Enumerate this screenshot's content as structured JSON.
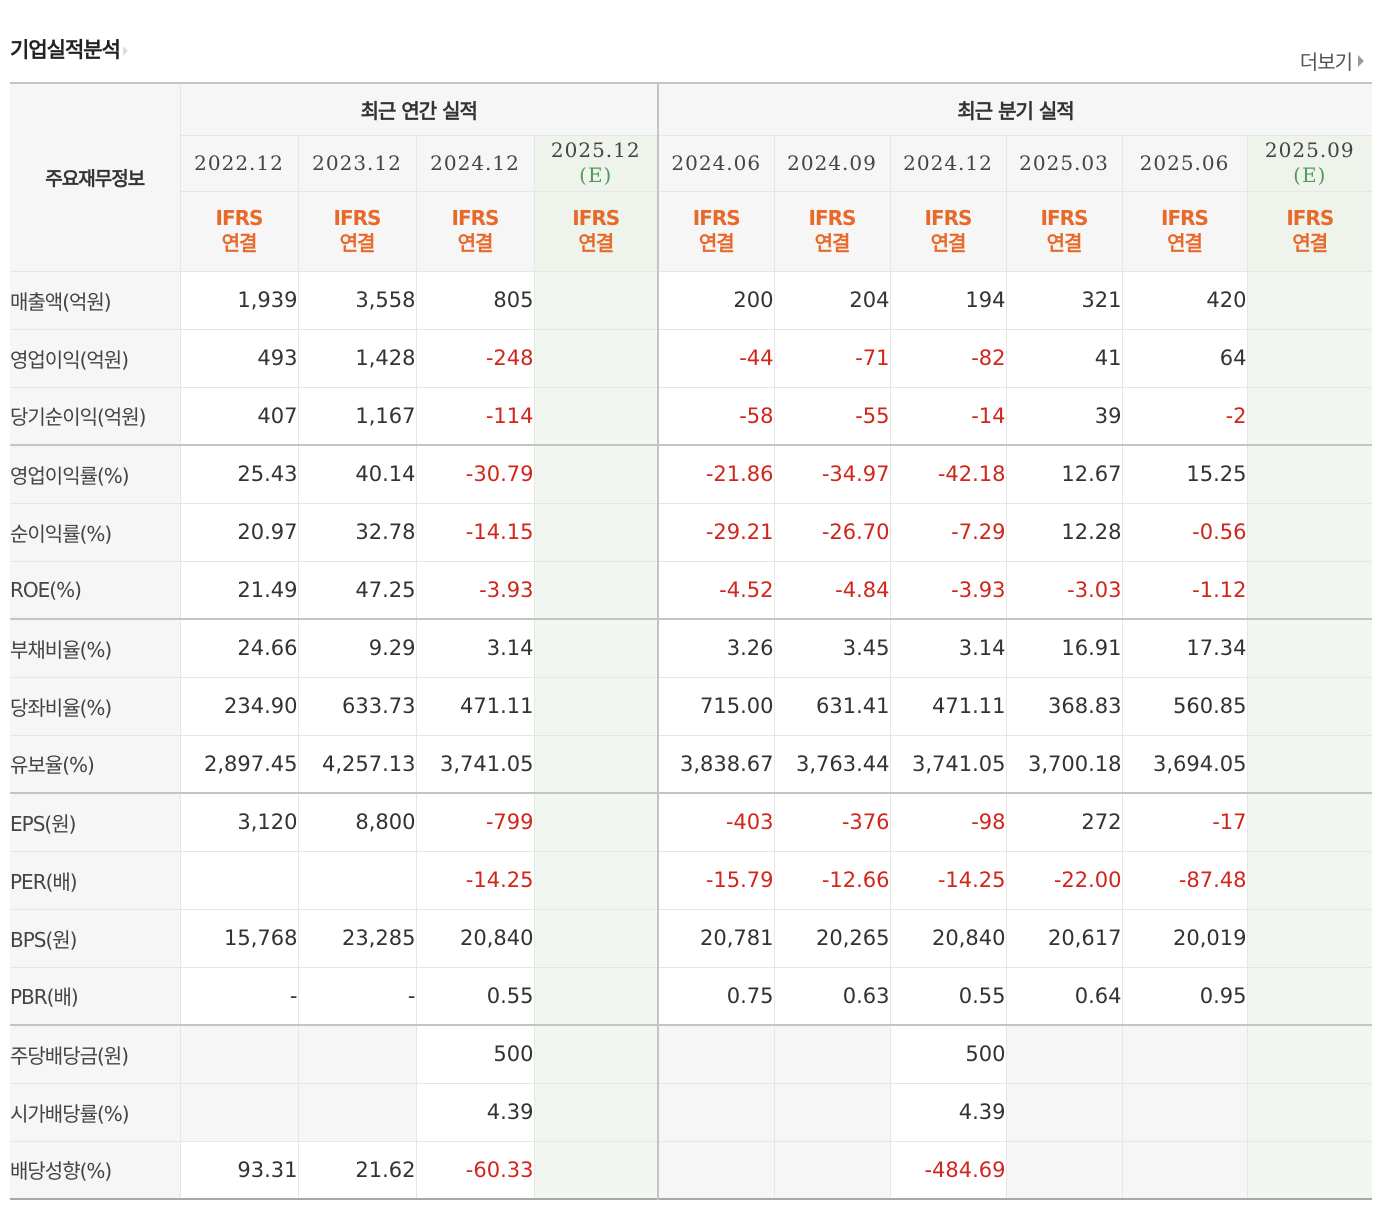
{
  "section_title": "기업실적분석",
  "more_label": "더보기",
  "header": {
    "row_label": "주요재무정보",
    "annual_group": "최근 연간 실적",
    "quarter_group": "최근 분기 실적",
    "periods": [
      {
        "label": "2022.12",
        "estimate": ""
      },
      {
        "label": "2023.12",
        "estimate": ""
      },
      {
        "label": "2024.12",
        "estimate": ""
      },
      {
        "label": "2025.12",
        "estimate": "(E)"
      },
      {
        "label": "2024.06",
        "estimate": ""
      },
      {
        "label": "2024.09",
        "estimate": ""
      },
      {
        "label": "2024.12",
        "estimate": ""
      },
      {
        "label": "2025.03",
        "estimate": ""
      },
      {
        "label": "2025.06",
        "estimate": ""
      },
      {
        "label": "2025.09",
        "estimate": "(E)"
      }
    ],
    "basis_line1": "IFRS",
    "basis_line2": "연결"
  },
  "rows": [
    {
      "label": "매출액(억원)",
      "values": [
        "1,939",
        "3,558",
        "805",
        "",
        "200",
        "204",
        "194",
        "321",
        "420",
        ""
      ]
    },
    {
      "label": "영업이익(억원)",
      "values": [
        "493",
        "1,428",
        "-248",
        "",
        "-44",
        "-71",
        "-82",
        "41",
        "64",
        ""
      ]
    },
    {
      "label": "당기순이익(억원)",
      "values": [
        "407",
        "1,167",
        "-114",
        "",
        "-58",
        "-55",
        "-14",
        "39",
        "-2",
        ""
      ]
    },
    {
      "label": "영업이익률(%)",
      "values": [
        "25.43",
        "40.14",
        "-30.79",
        "",
        "-21.86",
        "-34.97",
        "-42.18",
        "12.67",
        "15.25",
        ""
      ]
    },
    {
      "label": "순이익률(%)",
      "values": [
        "20.97",
        "32.78",
        "-14.15",
        "",
        "-29.21",
        "-26.70",
        "-7.29",
        "12.28",
        "-0.56",
        ""
      ]
    },
    {
      "label": "ROE(%)",
      "values": [
        "21.49",
        "47.25",
        "-3.93",
        "",
        "-4.52",
        "-4.84",
        "-3.93",
        "-3.03",
        "-1.12",
        ""
      ]
    },
    {
      "label": "부채비율(%)",
      "values": [
        "24.66",
        "9.29",
        "3.14",
        "",
        "3.26",
        "3.45",
        "3.14",
        "16.91",
        "17.34",
        ""
      ]
    },
    {
      "label": "당좌비율(%)",
      "values": [
        "234.90",
        "633.73",
        "471.11",
        "",
        "715.00",
        "631.41",
        "471.11",
        "368.83",
        "560.85",
        ""
      ]
    },
    {
      "label": "유보율(%)",
      "values": [
        "2,897.45",
        "4,257.13",
        "3,741.05",
        "",
        "3,838.67",
        "3,763.44",
        "3,741.05",
        "3,700.18",
        "3,694.05",
        ""
      ]
    },
    {
      "label": "EPS(원)",
      "values": [
        "3,120",
        "8,800",
        "-799",
        "",
        "-403",
        "-376",
        "-98",
        "272",
        "-17",
        ""
      ]
    },
    {
      "label": "PER(배)",
      "values": [
        "",
        "",
        "-14.25",
        "",
        "-15.79",
        "-12.66",
        "-14.25",
        "-22.00",
        "-87.48",
        ""
      ]
    },
    {
      "label": "BPS(원)",
      "values": [
        "15,768",
        "23,285",
        "20,840",
        "",
        "20,781",
        "20,265",
        "20,840",
        "20,617",
        "20,019",
        ""
      ]
    },
    {
      "label": "PBR(배)",
      "values": [
        "-",
        "-",
        "0.55",
        "",
        "0.75",
        "0.63",
        "0.55",
        "0.64",
        "0.95",
        ""
      ]
    },
    {
      "label": "주당배당금(원)",
      "values": [
        "",
        "",
        "500",
        "",
        "",
        "",
        "500",
        "",
        "",
        ""
      ]
    },
    {
      "label": "시가배당률(%)",
      "values": [
        "",
        "",
        "4.39",
        "",
        "",
        "",
        "4.39",
        "",
        "",
        ""
      ]
    },
    {
      "label": "배당성향(%)",
      "values": [
        "93.31",
        "21.62",
        "-60.33",
        "",
        "",
        "",
        "-484.69",
        "",
        "",
        ""
      ]
    }
  ],
  "colors": {
    "negative": "#d0261b",
    "basis": "#e86a2b",
    "estimate": "#4f9a55"
  }
}
